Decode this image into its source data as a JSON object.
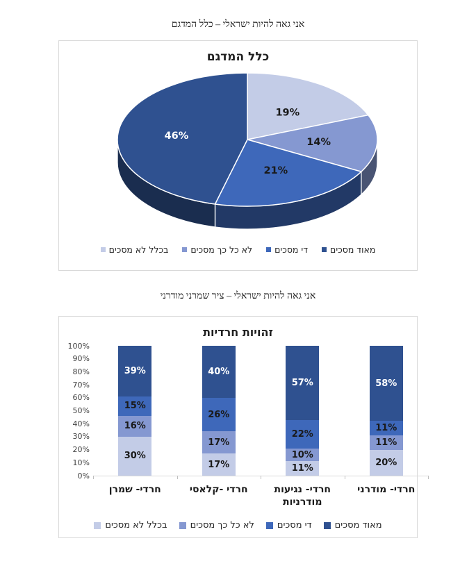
{
  "captions": {
    "chart1": "אני גאה להיות ישראלי – כלל המדגם",
    "chart2": "אני גאה להיות ישראלי – ציר שמרני מודרני"
  },
  "palette": {
    "strongly_agree": "#2F5190",
    "quite_agree": "#3E68BA",
    "not_so_much_agree": "#8598D1",
    "not_at_all_agree": "#C3CCE7",
    "frame_border": "#D9D9D9"
  },
  "legend_items_first_is_rightmost": [
    {
      "label": "מאוד מסכים",
      "color": "#2F5190"
    },
    {
      "label": "די מסכים",
      "color": "#3E68BA"
    },
    {
      "label": "לא כל כך מסכים",
      "color": "#8598D1"
    },
    {
      "label": "בכלל לא מסכים",
      "color": "#C3CCE7"
    }
  ],
  "chart_data": [
    {
      "type": "pie",
      "variant": "3d",
      "title": "כלל המדגם",
      "slices_clockwise_from_top": [
        {
          "label": "בכלל לא מסכים",
          "value": 19,
          "color": "#C3CCE7",
          "text_color": "#1a1a1a"
        },
        {
          "label": "לא כל כך מסכים",
          "value": 14,
          "color": "#8598D1",
          "text_color": "#1a1a1a"
        },
        {
          "label": "די מסכים",
          "value": 21,
          "color": "#3E68BA",
          "text_color": "#1a1a1a"
        },
        {
          "label": "מאוד מסכים",
          "value": 46,
          "color": "#2F5190",
          "text_color": "#ffffff"
        }
      ],
      "data_label_format": "percent",
      "legend_position": "bottom"
    },
    {
      "type": "bar",
      "variant": "stacked-100-rtl",
      "title": "זהויות חרדיות",
      "categories_first_is_rightmost": [
        "חרדי- מודרני",
        "חרדי- נגיעות מודרניות",
        "חרדי -קלאסי",
        "חרדי- שמרן"
      ],
      "series_top_to_bottom": [
        {
          "name": "מאוד מסכים",
          "color": "#2F5190",
          "text_color": "#ffffff",
          "values": [
            58,
            57,
            40,
            39
          ]
        },
        {
          "name": "די מסכים",
          "color": "#3E68BA",
          "text_color": "#1a1a1a",
          "values": [
            11,
            22,
            26,
            15
          ]
        },
        {
          "name": "לא כל כך מסכים",
          "color": "#8598D1",
          "text_color": "#1a1a1a",
          "values": [
            11,
            10,
            17,
            16
          ]
        },
        {
          "name": "בכלל לא מסכים",
          "color": "#C3CCE7",
          "text_color": "#1a1a1a",
          "values": [
            20,
            11,
            17,
            30
          ]
        }
      ],
      "y_ticks": [
        "0%",
        "10%",
        "20%",
        "30%",
        "40%",
        "50%",
        "60%",
        "70%",
        "80%",
        "90%",
        "100%"
      ],
      "ylim": [
        0,
        100
      ],
      "gridlines": false,
      "legend_position": "bottom",
      "data_label_format": "percent"
    }
  ]
}
